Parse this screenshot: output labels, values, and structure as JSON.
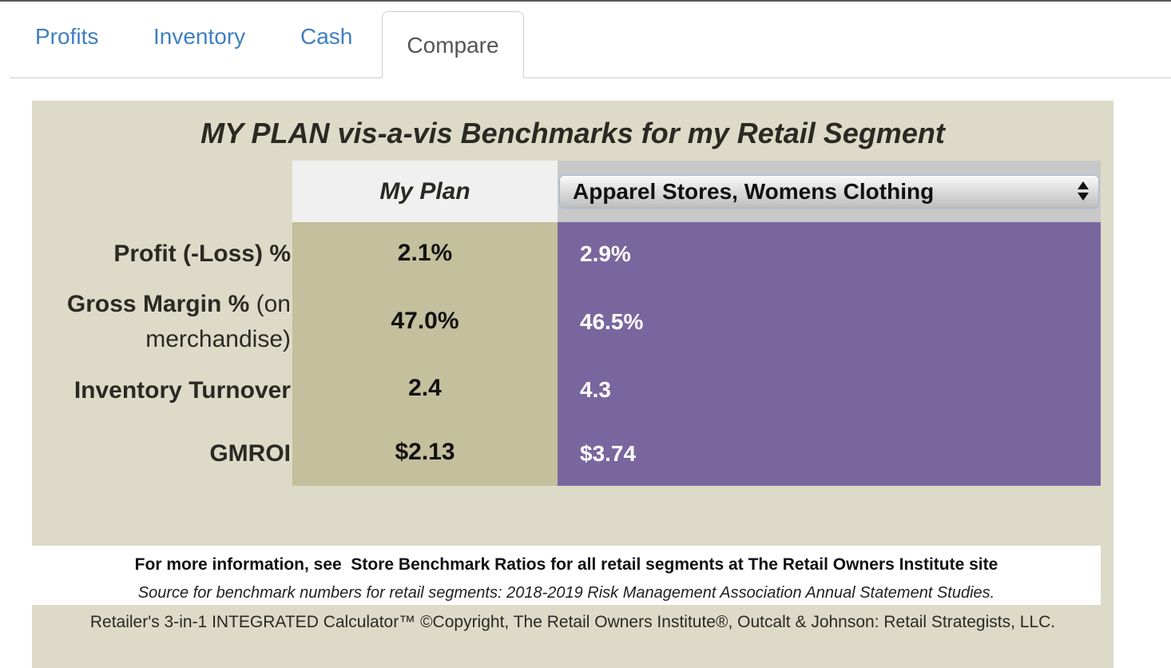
{
  "tabs": [
    {
      "label": "Profits"
    },
    {
      "label": "Inventory"
    },
    {
      "label": "Cash"
    },
    {
      "label": "Compare"
    }
  ],
  "panel": {
    "title": "MY PLAN vis-a-vis Benchmarks for my Retail Segment",
    "plan_header": "My Plan",
    "segment_select": {
      "selected": "Apparel Stores, Womens Clothing"
    },
    "rows": [
      {
        "label": "Profit (-Loss) %",
        "plan": "2.1%",
        "benchmark": "2.9%"
      },
      {
        "label_bold": "Gross Margin %",
        "label_light_1": " (on",
        "label_light_2": "merchandise)",
        "plan": "47.0%",
        "benchmark": "46.5%"
      },
      {
        "label": "Inventory Turnover",
        "plan": "2.4",
        "benchmark": "4.3"
      },
      {
        "label": "GMROI",
        "plan": "$2.13",
        "benchmark": "$3.74"
      }
    ],
    "info": {
      "prefix": "For more information, see  ",
      "link1": "Store Benchmark Ratios",
      "middle": " for all retail segments at ",
      "link2": "The Retail Owners Institute",
      "suffix": " site",
      "source": "Source for benchmark numbers for retail segments: 2018-2019 Risk Management Association Annual Statement Studies."
    },
    "copyright": "Retailer's 3-in-1 INTEGRATED Calculator™ ©Copyright, The Retail Owners Institute®, Outcalt & Johnson: Retail Strategists, LLC."
  },
  "colors": {
    "panel_bg": "#dddbc8",
    "plan_bg": "#c4bf9c",
    "benchmark_bg": "#7a669e",
    "tab_link": "#3f7fc0"
  }
}
